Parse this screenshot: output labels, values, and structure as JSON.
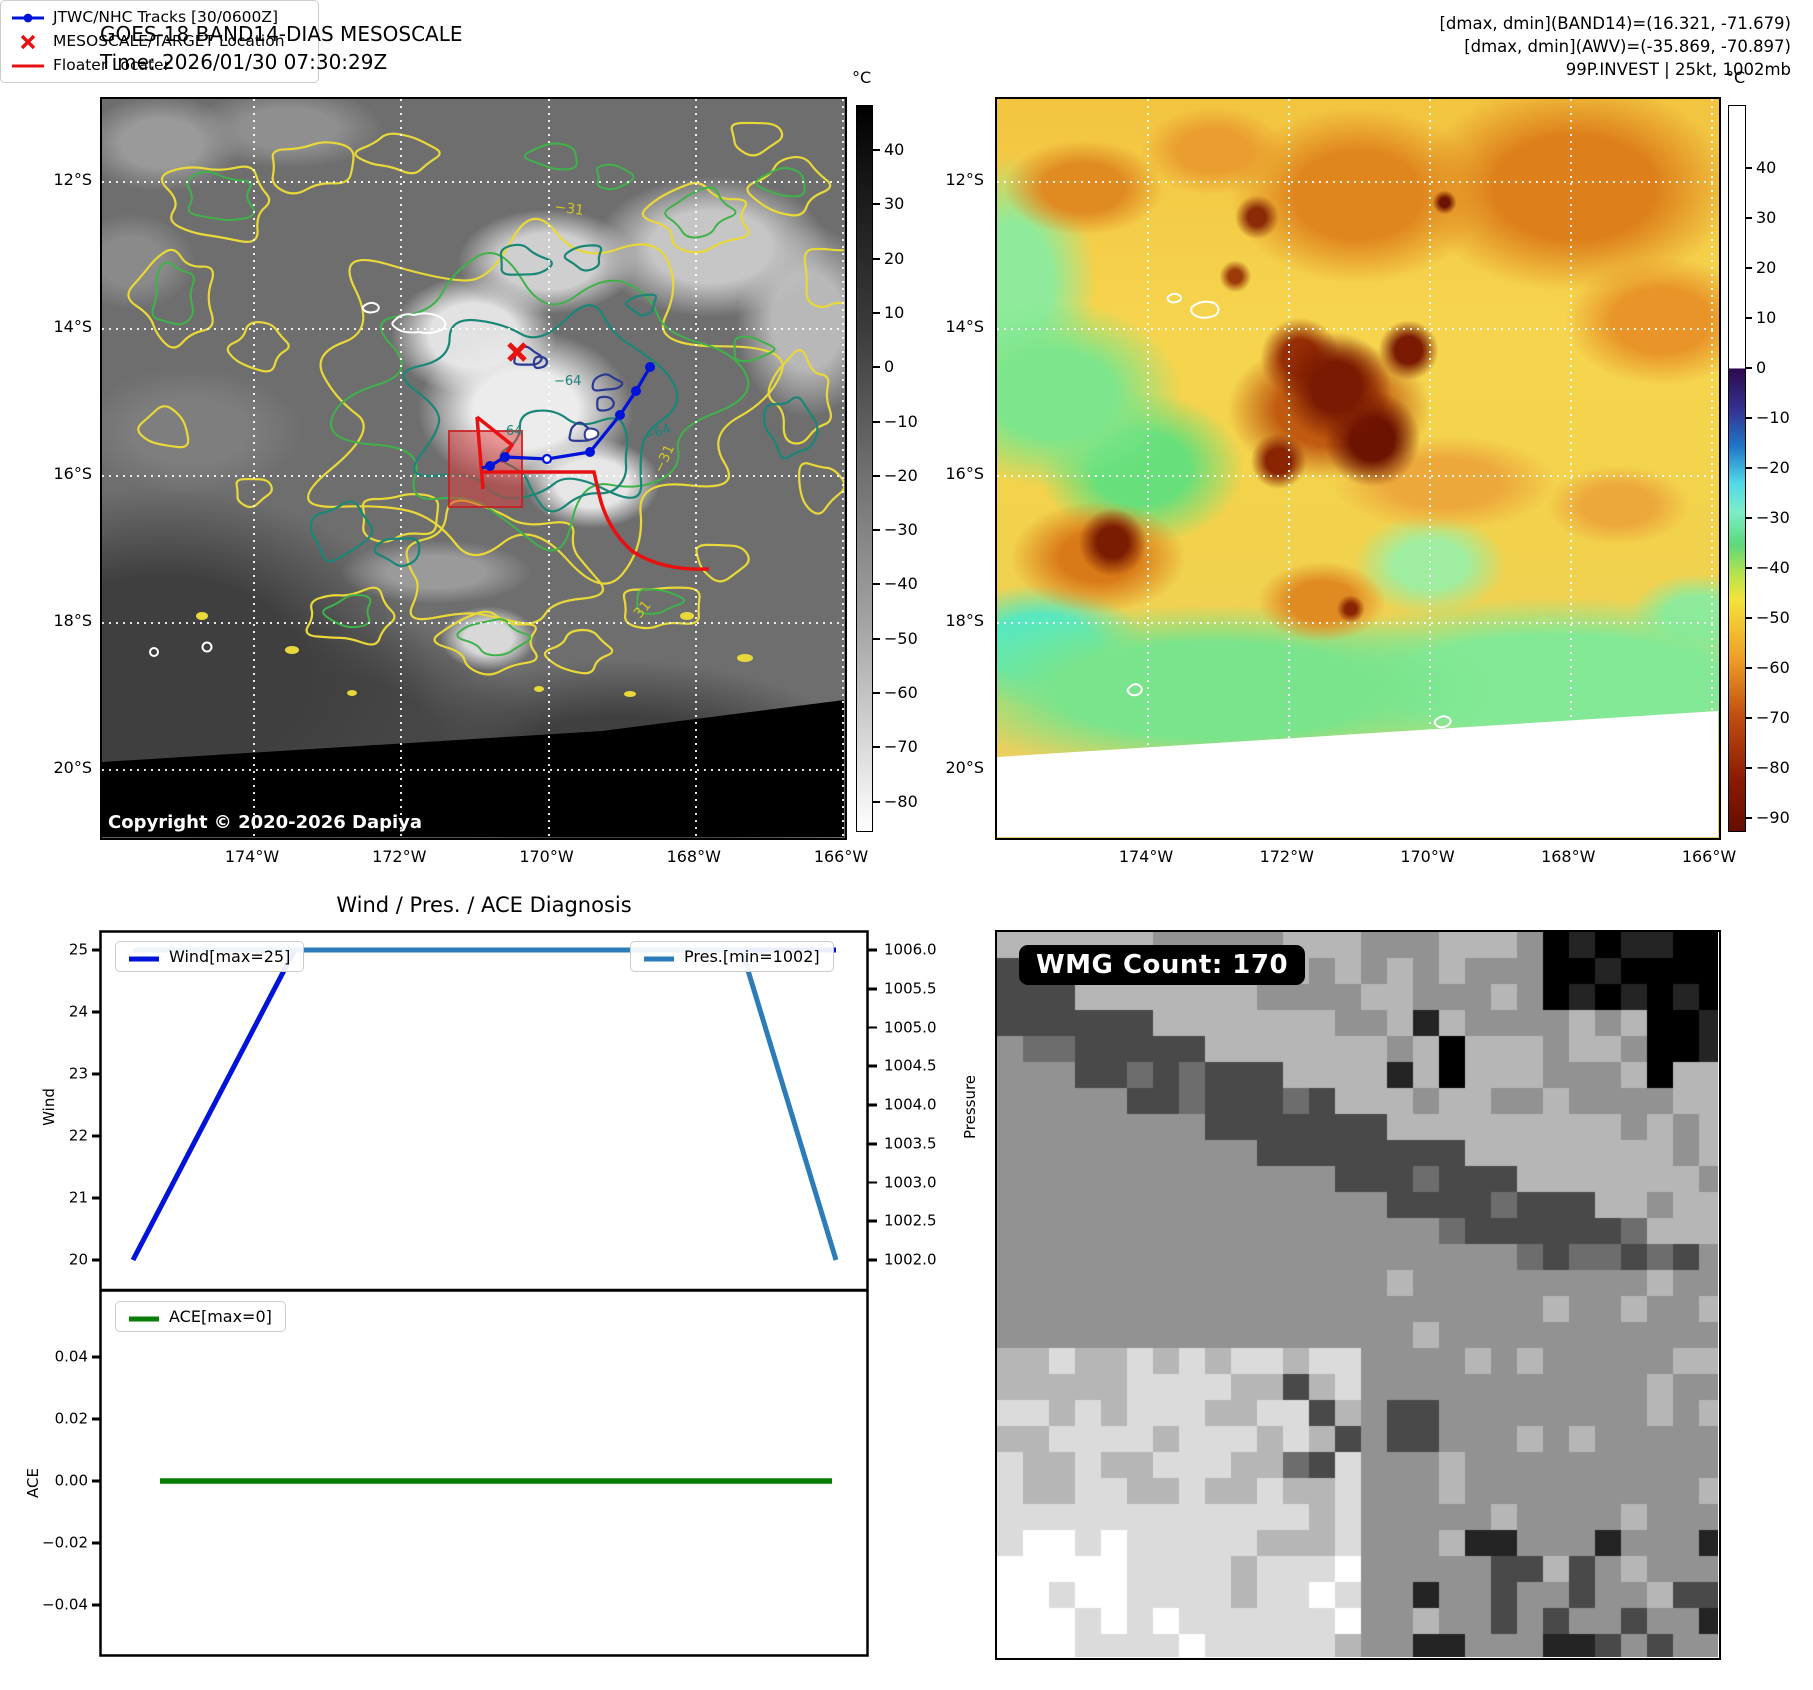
{
  "left_map": {
    "title": "GOES-18 BAND14-DIAS MESOSCALE",
    "time": "Time: 2026/01/30 07:30:29Z",
    "copyright": "Copyright © 2020-2026 Dapiya",
    "legend": {
      "track": "JTWC/NHC Tracks [30/0600Z]",
      "target": "MESOSCALE/TARGET Location",
      "floater": "Floater Locater"
    },
    "x_ticks": [
      "174°W",
      "172°W",
      "170°W",
      "168°W",
      "166°W"
    ],
    "y_ticks": [
      "12°S",
      "14°S",
      "16°S",
      "18°S",
      "20°S"
    ],
    "colorbar": {
      "unit": "°C",
      "ticks": [
        "40",
        "30",
        "20",
        "10",
        "0",
        "−10",
        "−20",
        "−30",
        "−40",
        "−50",
        "−60",
        "−70",
        "−80"
      ]
    },
    "contour_labels": [
      "−31",
      "−64",
      "64",
      "−31",
      "31",
      "−64"
    ]
  },
  "right_map": {
    "header": [
      "[dmax, dmin](BAND14)=(16.321, -71.679)",
      "[dmax, dmin](AWV)=(-35.869, -70.897)",
      "99P.INVEST | 25kt, 1002mb"
    ],
    "x_ticks": [
      "174°W",
      "172°W",
      "170°W",
      "168°W",
      "166°W"
    ],
    "y_ticks": [
      "12°S",
      "14°S",
      "16°S",
      "18°S",
      "20°S"
    ],
    "colorbar": {
      "unit": "°C",
      "ticks": [
        "40",
        "30",
        "20",
        "10",
        "0",
        "−10",
        "−20",
        "−30",
        "−40",
        "−50",
        "−60",
        "−70",
        "−80",
        "−90"
      ]
    }
  },
  "diagnosis": {
    "title": "Wind / Pres. / ACE Diagnosis",
    "wind_axis_label": "Wind",
    "pressure_axis_label": "Pressure",
    "ace_axis_label": "ACE",
    "wind_legend": "Wind[max=25]",
    "pres_legend": "Pres.[min=1002]",
    "ace_legend": "ACE[max=0]",
    "wind_ticks": [
      "25",
      "24",
      "23",
      "22",
      "21",
      "20"
    ],
    "pressure_ticks": [
      "1006.0",
      "1005.5",
      "1005.0",
      "1004.5",
      "1004.0",
      "1003.5",
      "1003.0",
      "1002.5",
      "1002.0"
    ],
    "ace_ticks": [
      "0.04",
      "0.02",
      "0.00",
      "−0.02",
      "−0.04"
    ]
  },
  "wmg": {
    "count_label": "WMG Count: 170"
  },
  "chart_data": [
    {
      "type": "line",
      "title": "Wind / Pres. / ACE Diagnosis",
      "x_axis": "time (no tick labels shown)",
      "series": [
        {
          "name": "Wind[max=25]",
          "yaxis": "left (Wind)",
          "x_frac": [
            0,
            0.23,
            1
          ],
          "values": [
            20,
            25,
            25
          ],
          "color": "#0013d8"
        },
        {
          "name": "Pres.[min=1002]",
          "yaxis": "right (Pressure)",
          "x_frac": [
            0,
            0.866,
            1
          ],
          "values": [
            1006,
            1006,
            1002
          ],
          "color": "#2b7cb8"
        }
      ],
      "ylim_left": [
        20,
        25
      ],
      "ylim_right": [
        1002,
        1006
      ],
      "legend_position": "upper left / upper right"
    },
    {
      "type": "line",
      "title": "",
      "series": [
        {
          "name": "ACE[max=0]",
          "x_frac": [
            0,
            1
          ],
          "values": [
            0,
            0
          ],
          "color": "#067d06"
        }
      ],
      "ylabel": "ACE",
      "ylim": [
        -0.05,
        0.05
      ],
      "legend_position": "upper left"
    }
  ]
}
